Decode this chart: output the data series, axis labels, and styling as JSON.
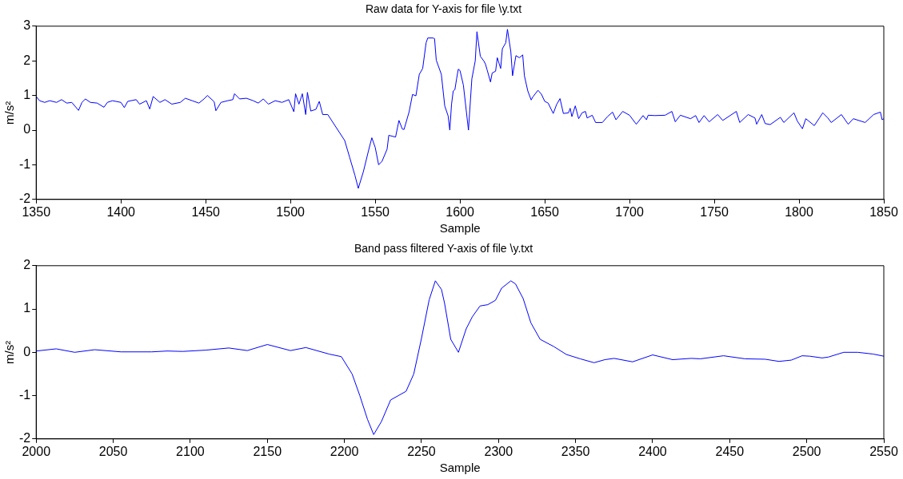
{
  "chart_data": [
    {
      "type": "line",
      "title": "Raw data for Y-axis for file \\y.txt",
      "xlabel": "Sample",
      "ylabel": "m/s²",
      "color": "#0000ff",
      "grid": false,
      "marker": "none",
      "line_style": "solid",
      "xlim": [
        1350,
        1850
      ],
      "ylim": [
        -2,
        3
      ],
      "xticks": [
        1350,
        1400,
        1450,
        1500,
        1550,
        1600,
        1650,
        1700,
        1750,
        1800,
        1850
      ],
      "yticks": [
        -2,
        -1,
        0,
        1,
        2,
        3
      ],
      "x": [
        1350,
        1352,
        1355,
        1358,
        1362,
        1365,
        1368,
        1371,
        1375,
        1377,
        1379,
        1382,
        1386,
        1390,
        1392,
        1395,
        1400,
        1402,
        1404,
        1409,
        1411,
        1415,
        1417,
        1419,
        1423,
        1426,
        1430,
        1435,
        1438,
        1442,
        1446,
        1449,
        1451,
        1455,
        1456,
        1459,
        1463,
        1466,
        1467,
        1470,
        1474,
        1478,
        1481,
        1484,
        1487,
        1491,
        1495,
        1499,
        1502,
        1503,
        1505,
        1507,
        1509,
        1510,
        1512,
        1515,
        1517,
        1519,
        1522,
        1524,
        1528,
        1532,
        1535,
        1538,
        1540,
        1543,
        1546,
        1548,
        1550,
        1552,
        1554,
        1557,
        1558,
        1562,
        1564,
        1566,
        1567,
        1570,
        1572,
        1574,
        1576,
        1578,
        1580,
        1581,
        1584,
        1585,
        1586,
        1589,
        1591,
        1593,
        1594,
        1595,
        1596,
        1597,
        1598,
        1599,
        1600,
        1602,
        1605,
        1607,
        1609,
        1610,
        1612,
        1614,
        1615,
        1616,
        1618,
        1619,
        1621,
        1622,
        1624,
        1625,
        1627,
        1628,
        1630,
        1631,
        1633,
        1635,
        1637,
        1638,
        1640,
        1642,
        1643,
        1646,
        1648,
        1650,
        1652,
        1655,
        1657,
        1659,
        1661,
        1664,
        1665,
        1666,
        1668,
        1670,
        1672,
        1674,
        1675,
        1678,
        1680,
        1684,
        1687,
        1690,
        1692,
        1696,
        1700,
        1704,
        1708,
        1710,
        1711,
        1715,
        1721,
        1725,
        1727,
        1730,
        1736,
        1739,
        1741,
        1744,
        1747,
        1752,
        1755,
        1763,
        1765,
        1770,
        1774,
        1775,
        1778,
        1780,
        1783,
        1789,
        1791,
        1797,
        1799,
        1802,
        1804,
        1809,
        1812,
        1814,
        1817,
        1819,
        1825,
        1829,
        1832,
        1839,
        1844,
        1848,
        1849,
        1850
      ],
      "values": [
        0.97,
        0.85,
        0.8,
        0.85,
        0.8,
        0.88,
        0.78,
        0.8,
        0.57,
        0.8,
        0.9,
        0.8,
        0.78,
        0.66,
        0.8,
        0.85,
        0.8,
        0.65,
        0.83,
        0.88,
        0.75,
        0.85,
        0.61,
        0.97,
        0.8,
        0.88,
        0.75,
        0.8,
        0.92,
        0.85,
        0.78,
        0.9,
        1.0,
        0.82,
        0.56,
        0.8,
        0.85,
        0.88,
        1.05,
        0.9,
        0.92,
        0.85,
        0.78,
        0.9,
        0.75,
        0.85,
        0.8,
        0.88,
        0.53,
        1.05,
        0.75,
        1.05,
        0.45,
        1.09,
        0.55,
        0.6,
        0.83,
        0.45,
        0.45,
        0.3,
        0,
        -0.3,
        -0.8,
        -1.3,
        -1.68,
        -1.2,
        -0.6,
        -0.22,
        -0.5,
        -1.0,
        -0.9,
        -0.55,
        -0.15,
        -0.2,
        0.28,
        0.03,
        0.02,
        0.53,
        1.03,
        0.99,
        1.61,
        1.78,
        2.52,
        2.66,
        2.66,
        2.64,
        2.02,
        1.61,
        0.7,
        0.41,
        0,
        0.74,
        1.13,
        1.17,
        1.48,
        1.76,
        1.72,
        1.3,
        0,
        1.48,
        2.0,
        2.84,
        2.13,
        2.0,
        1.91,
        1.74,
        1.39,
        1.65,
        1.7,
        2.09,
        1.78,
        2.35,
        2.52,
        2.91,
        2.26,
        1.57,
        2.15,
        2.09,
        2.17,
        1.57,
        1.13,
        0.87,
        0.96,
        1.15,
        1.04,
        0.83,
        0.78,
        0.48,
        0.74,
        0.91,
        0.48,
        0.5,
        0.63,
        0.39,
        0.7,
        0.33,
        0.5,
        0.54,
        0.35,
        0.43,
        0.22,
        0.22,
        0.39,
        0.52,
        0.3,
        0.54,
        0.43,
        0.17,
        0.42,
        0.3,
        0.43,
        0.42,
        0.43,
        0.54,
        0.24,
        0.43,
        0.33,
        0.42,
        0.22,
        0.42,
        0.24,
        0.45,
        0.28,
        0.54,
        0.22,
        0.45,
        0.35,
        0.17,
        0.45,
        0.19,
        0.16,
        0.37,
        0.22,
        0.5,
        0.26,
        0.04,
        0.33,
        0.13,
        0.35,
        0.5,
        0.35,
        0.22,
        0.45,
        0.17,
        0.33,
        0.22,
        0.45,
        0.52,
        0.3,
        0.33
      ]
    },
    {
      "type": "line",
      "title": "Band pass filtered Y-axis of file \\y.txt",
      "xlabel": "Sample",
      "ylabel": "m/s²",
      "color": "#0000ff",
      "grid": false,
      "marker": "none",
      "line_style": "solid",
      "xlim": [
        2000,
        2550
      ],
      "ylim": [
        -2,
        2
      ],
      "xticks": [
        2000,
        2050,
        2100,
        2150,
        2200,
        2250,
        2300,
        2350,
        2400,
        2450,
        2500,
        2550
      ],
      "yticks": [
        -2,
        -1,
        0,
        1,
        2
      ],
      "x": [
        2000,
        2013,
        2025,
        2038,
        2055,
        2075,
        2085,
        2095,
        2110,
        2125,
        2137,
        2150,
        2165,
        2175,
        2190,
        2198,
        2205,
        2210,
        2215,
        2219,
        2224,
        2230,
        2235,
        2240,
        2245,
        2250,
        2255,
        2259,
        2263,
        2265,
        2269,
        2274,
        2279,
        2283,
        2288,
        2293,
        2298,
        2302,
        2308,
        2311,
        2316,
        2321,
        2327,
        2336,
        2344,
        2353,
        2362,
        2369,
        2375,
        2387,
        2400,
        2413,
        2425,
        2431,
        2446,
        2460,
        2473,
        2482,
        2490,
        2497,
        2502,
        2510,
        2514,
        2524,
        2533,
        2543,
        2550
      ],
      "values": [
        0.03,
        0.08,
        0,
        0.06,
        0.01,
        0.01,
        0.03,
        0.02,
        0.05,
        0.1,
        0.04,
        0.18,
        0.04,
        0.11,
        -0.04,
        -0.1,
        -0.5,
        -1.0,
        -1.55,
        -1.9,
        -1.6,
        -1.1,
        -1.0,
        -0.9,
        -0.5,
        0.32,
        1.21,
        1.65,
        1.45,
        1.13,
        0.3,
        0,
        0.54,
        0.82,
        1.07,
        1.1,
        1.2,
        1.48,
        1.65,
        1.58,
        1.24,
        0.68,
        0.3,
        0.13,
        -0.05,
        -0.15,
        -0.24,
        -0.17,
        -0.14,
        -0.22,
        -0.06,
        -0.17,
        -0.14,
        -0.15,
        -0.08,
        -0.15,
        -0.16,
        -0.21,
        -0.18,
        -0.08,
        -0.09,
        -0.13,
        -0.11,
        0,
        0,
        -0.04,
        -0.09
      ]
    }
  ]
}
